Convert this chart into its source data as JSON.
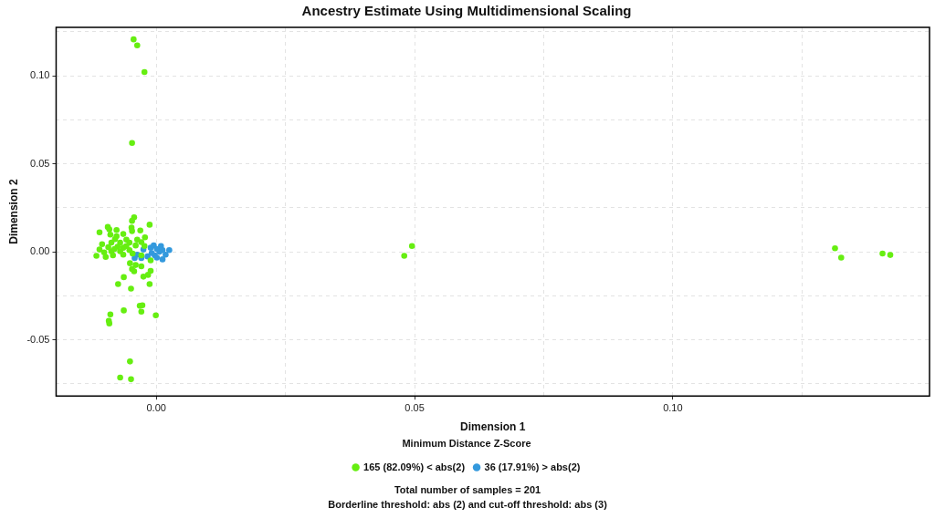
{
  "chart_data": {
    "type": "scatter",
    "title": "Ancestry Estimate Using Multidimensional Scaling",
    "xlabel": "Dimension 1",
    "ylabel": "Dimension 2",
    "legend_title": "Minimum Distance Z-Score",
    "xlim": [
      -0.0194,
      0.1497
    ],
    "ylim": [
      -0.0819,
      0.1275
    ],
    "xticks": [
      {
        "value": 0,
        "label": "0.00"
      },
      {
        "value": 0.025,
        "label": null
      },
      {
        "value": 0.05,
        "label": "0.05"
      },
      {
        "value": 0.075,
        "label": null
      },
      {
        "value": 0.1,
        "label": "0.10"
      },
      {
        "value": 0.125,
        "label": null
      }
    ],
    "yticks": [
      {
        "value": -0.075,
        "label": null
      },
      {
        "value": -0.05,
        "label": "-0.05"
      },
      {
        "value": -0.025,
        "label": null
      },
      {
        "value": 0,
        "label": "0.00"
      },
      {
        "value": 0.025,
        "label": null
      },
      {
        "value": 0.05,
        "label": "0.05"
      },
      {
        "value": 0.075,
        "label": null
      },
      {
        "value": 0.1,
        "label": "0.10"
      },
      {
        "value": 0.125,
        "label": null
      }
    ],
    "grid": true,
    "legend": "bottom",
    "marker": "circle",
    "series": [
      {
        "name": "165 (82.09%) < abs(2)",
        "color": "#66ee11",
        "x": [
          -0.0044,
          -0.0037,
          -0.0023,
          -0.0047,
          -0.0049,
          -0.0089,
          -0.0063,
          -0.0032,
          -0.0027,
          -0.0029,
          -0.0001,
          -0.0092,
          -0.0091,
          -0.0051,
          -0.007,
          -0.0049,
          0.0495,
          0.048,
          0.1314,
          0.1326,
          0.1406,
          0.1421,
          -0.0043,
          -0.0047,
          -0.0094,
          -0.0091,
          -0.0048,
          -0.0013,
          -0.0077,
          -0.011,
          -0.0031,
          -0.0047,
          -0.0089,
          -0.0064,
          -0.0077,
          -0.0022,
          -0.008,
          -0.0058,
          -0.0037,
          -0.0087,
          -0.007,
          -0.0052,
          -0.0029,
          -0.0105,
          -0.011,
          -0.0093,
          -0.0075,
          -0.0058,
          -0.004,
          -0.0101,
          -0.0087,
          -0.007,
          -0.0052,
          -0.0116,
          -0.0098,
          -0.0084,
          -0.0064,
          -0.0046,
          -0.0029,
          -0.0011,
          -0.0051,
          -0.004,
          -0.0029,
          -0.0047,
          -0.0043,
          -0.0011,
          -0.0063,
          -0.0025,
          -0.0016,
          -0.0074,
          -0.0013,
          -0.0081,
          -0.0064,
          -0.0023
        ],
        "values": [
          0.1207,
          0.1173,
          0.1021,
          0.0618,
          -0.0209,
          -0.0356,
          -0.0333,
          -0.0307,
          -0.0304,
          -0.034,
          -0.0361,
          -0.0392,
          -0.0407,
          -0.0623,
          -0.0714,
          -0.0724,
          0.0033,
          -0.0023,
          0.002,
          -0.0033,
          -0.001,
          -0.0018,
          0.0196,
          0.0176,
          0.0141,
          0.0127,
          0.0137,
          0.0154,
          0.0124,
          0.0111,
          0.0121,
          0.0118,
          0.0098,
          0.0101,
          0.0088,
          0.0082,
          0.0072,
          0.0069,
          0.0069,
          0.0052,
          0.0052,
          0.0052,
          0.0055,
          0.0043,
          0.0013,
          0.0026,
          0.0029,
          0.0033,
          0.0036,
          -0.0003,
          0.0003,
          0.0003,
          0.001,
          -0.0023,
          -0.0029,
          -0.002,
          -0.0016,
          -0.001,
          -0.002,
          -0.0049,
          -0.0065,
          -0.0075,
          -0.0082,
          -0.0098,
          -0.0111,
          -0.0108,
          -0.0144,
          -0.0141,
          -0.0131,
          -0.0183,
          -0.0183,
          0.0016,
          0.0023,
          0.0033
        ]
      },
      {
        "name": "36 (17.91%) > abs(2)",
        "color": "#3399dd",
        "x": [
          -0.0005,
          0.0009,
          0.0001,
          -0.0037,
          -0.0009,
          0.0006,
          0.0025,
          0.0018,
          0.0012,
          -0.0003,
          -0.0017,
          0.0001,
          -0.0042,
          -0.0029,
          0.0012,
          -0.0011,
          -0.0025
        ],
        "values": [
          0.0036,
          0.0033,
          0.0016,
          -0.0016,
          -0.0007,
          0,
          0.001,
          -0.0016,
          0.001,
          -0.002,
          -0.0026,
          -0.0033,
          -0.0036,
          -0.0036,
          -0.0043,
          0.0023,
          0.0013
        ]
      }
    ],
    "annotations": [
      "Total number of samples = 201",
      "Borderline threshold: abs (2) and cut-off threshold: abs (3)"
    ]
  }
}
